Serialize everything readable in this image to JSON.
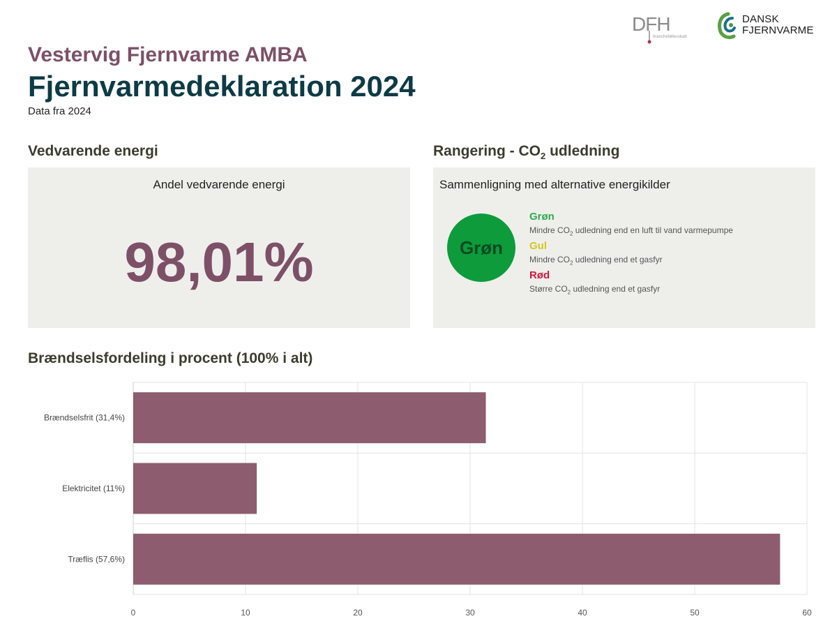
{
  "logos": {
    "dfh": {
      "letters": "DFH",
      "tagline": "brancheføllesskab"
    },
    "dansk_fjernvarme": {
      "line1": "DANSK",
      "line2": "FJERNVARME"
    }
  },
  "header": {
    "organization": "Vestervig Fjernvarme AMBA",
    "title": "Fjernvarmedeklaration 2024",
    "subtitle": "Data fra 2024"
  },
  "renewable": {
    "heading": "Vedvarende energi",
    "caption": "Andel vedvarende energi",
    "value": "98,01%"
  },
  "co2": {
    "heading_pre": "Rangering - CO",
    "heading_sub": "2",
    "heading_post": " udledning",
    "caption": "Sammenligning med alternative energikilder",
    "badge": "Grøn",
    "legend": [
      {
        "title": "Grøn",
        "color": "#2eab4e",
        "desc_pre": "Mindre CO",
        "desc_sub": "2",
        "desc_post": " udledning end en luft til vand varmepumpe"
      },
      {
        "title": "Gul",
        "color": "#d8c61a",
        "desc_pre": "Mindre CO",
        "desc_sub": "2",
        "desc_post": " udledning end et gasfyr"
      },
      {
        "title": "Rød",
        "color": "#d3183d",
        "desc_pre": "Større CO",
        "desc_sub": "2",
        "desc_post": " udledning end et gasfyr"
      }
    ]
  },
  "fuel": {
    "heading": "Brændselsfordeling i procent (100% i alt)"
  },
  "chart_data": {
    "type": "bar",
    "orientation": "horizontal",
    "categories": [
      "Brændselsfrit (31,4%)",
      "Elektricitet (11%)",
      "Træflis (57,6%)"
    ],
    "values": [
      31.4,
      11,
      57.6
    ],
    "xlim": [
      0,
      60
    ],
    "xticks": [
      0,
      10,
      20,
      30,
      40,
      50,
      60
    ],
    "grid": true,
    "bar_color": "#8d5c6f"
  }
}
